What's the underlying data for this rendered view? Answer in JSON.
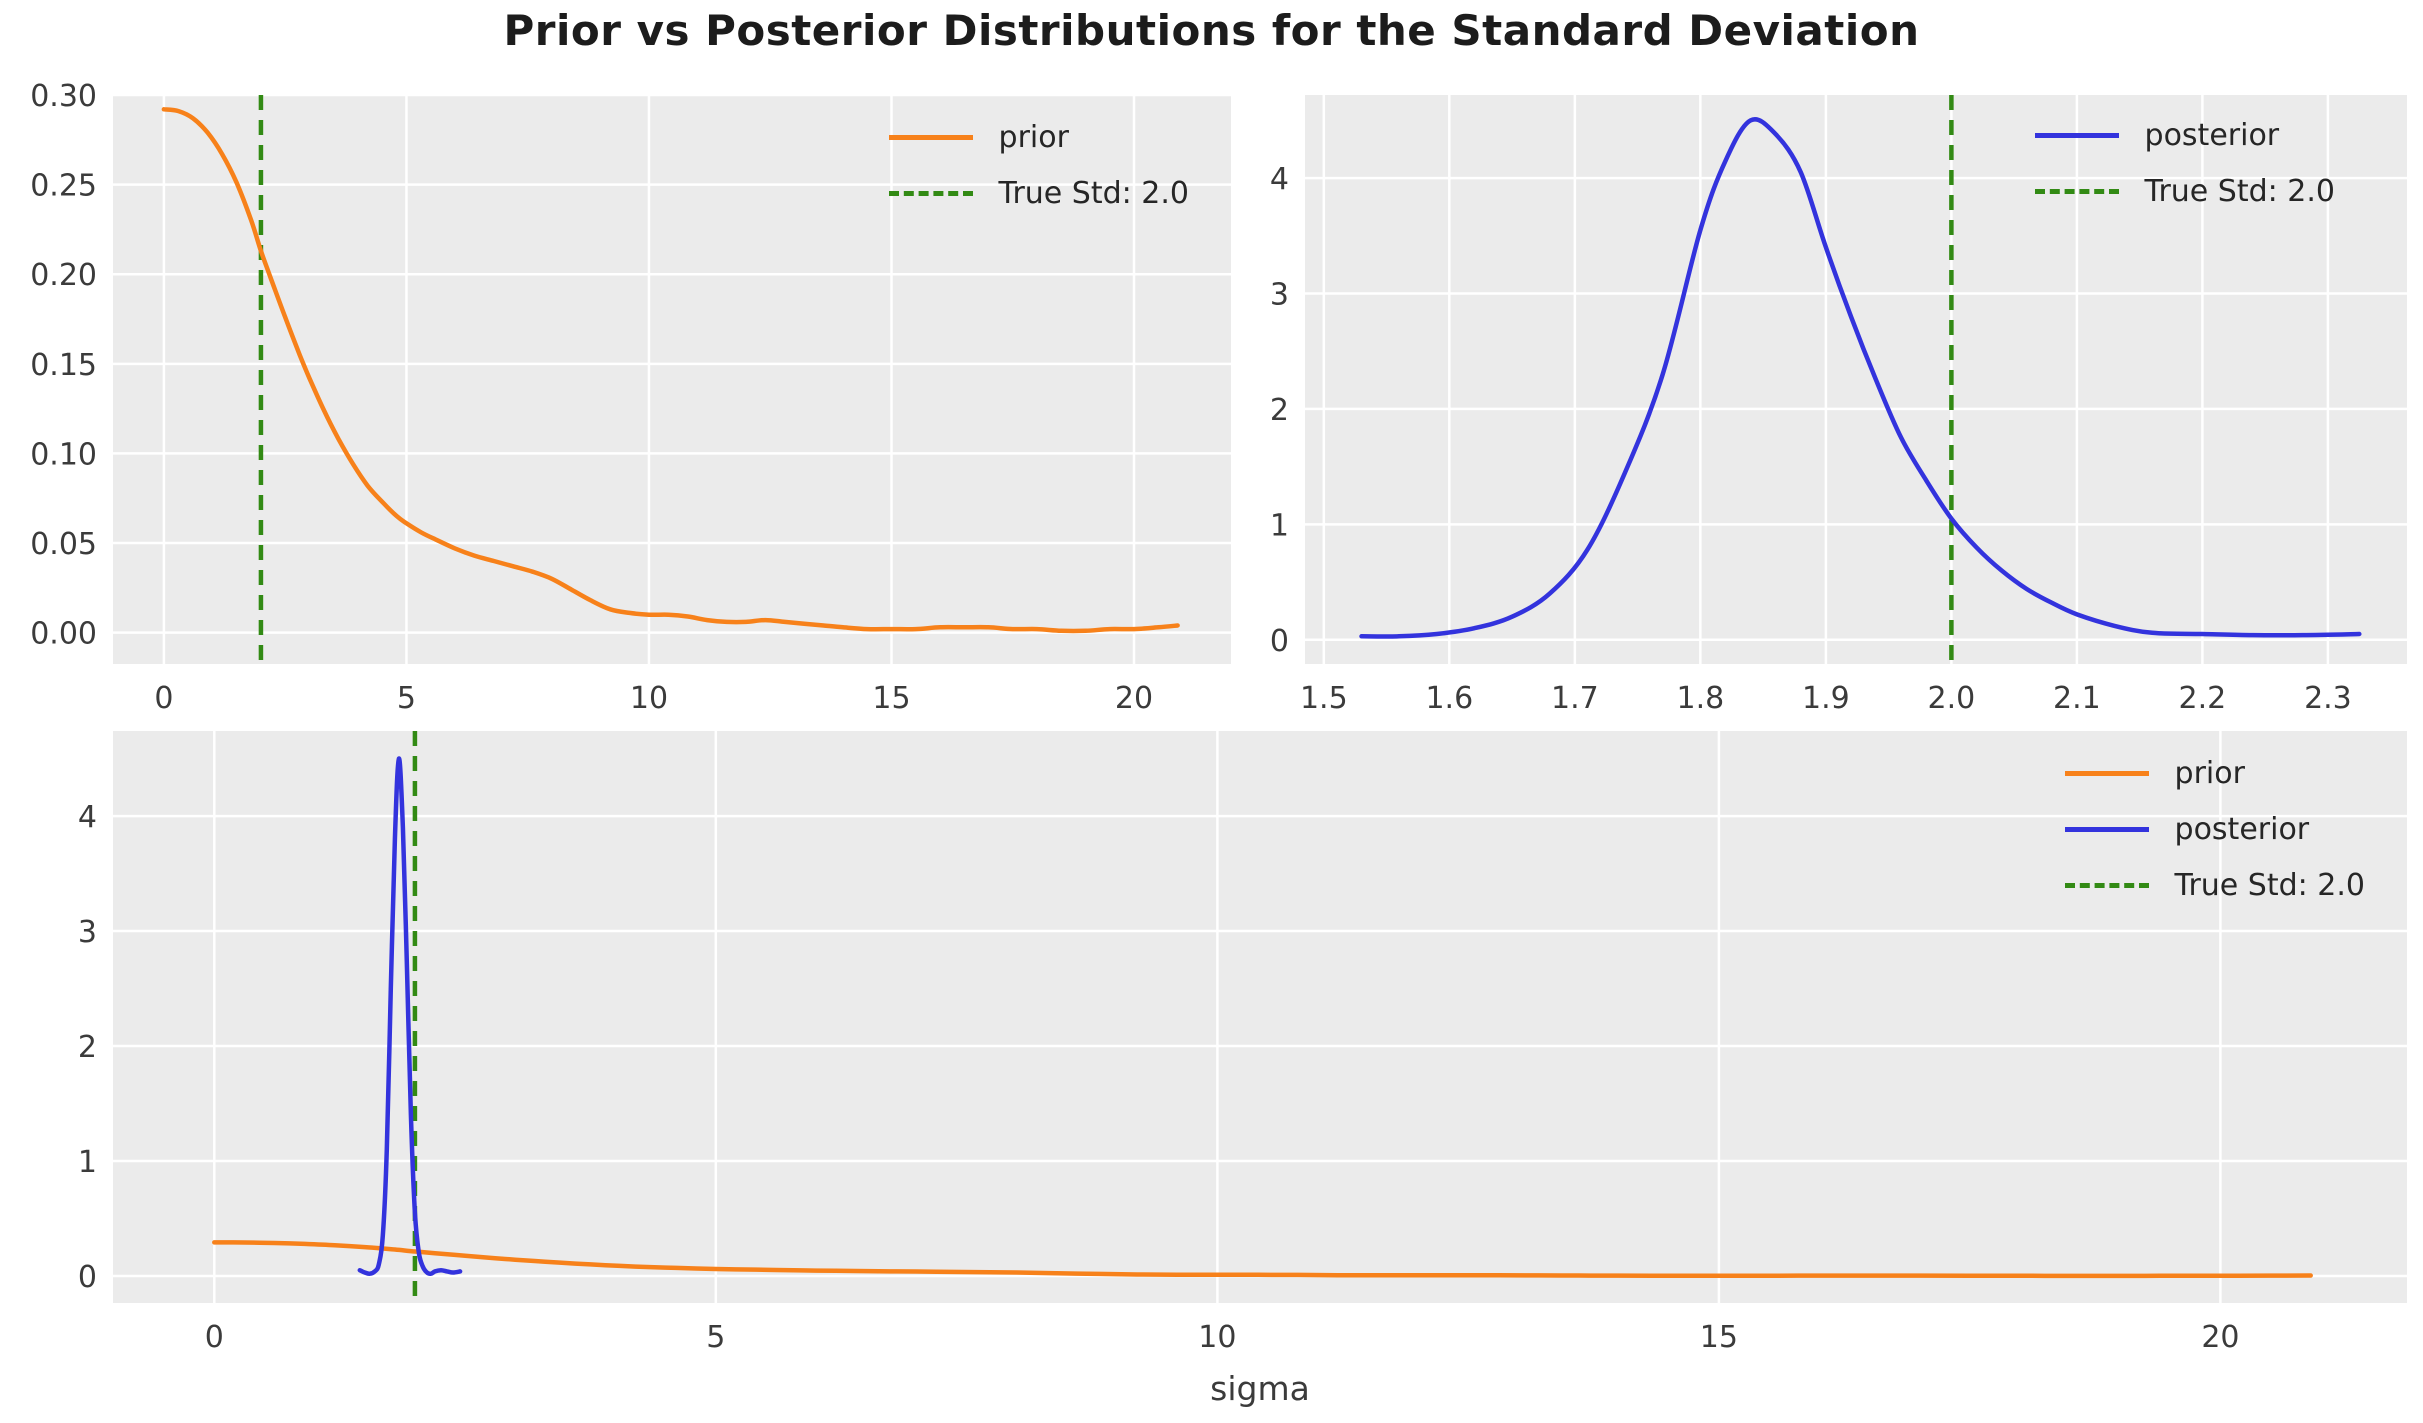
{
  "title": "Prior vs Posterior Distributions for the Standard Deviation",
  "colors": {
    "prior": "#f7811a",
    "posterior": "#3333dd",
    "true_std": "#328a14",
    "axes_background": "#ebebeb",
    "grid": "#ffffff",
    "tick_text": "#3b3b3b",
    "title_text": "#1c1c1c"
  },
  "chart_data": [
    {
      "type": "line",
      "name": "prior-distribution",
      "xlim": [
        -1.05,
        22.0
      ],
      "ylim": [
        -0.0175,
        0.3
      ],
      "grid": true,
      "legend_position": "upper right",
      "xlabel": "",
      "xticks": [
        [
          0,
          "0"
        ],
        [
          5,
          "5"
        ],
        [
          10,
          "10"
        ],
        [
          15,
          "15"
        ],
        [
          20,
          "20"
        ]
      ],
      "yticks": [
        [
          0,
          "0.00"
        ],
        [
          0.05,
          "0.05"
        ],
        [
          0.1,
          "0.10"
        ],
        [
          0.15,
          "0.15"
        ],
        [
          0.2,
          "0.20"
        ],
        [
          0.25,
          "0.25"
        ],
        [
          0.3,
          "0.30"
        ]
      ],
      "vline": {
        "x": 2.0,
        "label": "True Std: 2.0",
        "color": "true_std"
      },
      "series": [
        {
          "name": "prior",
          "color": "prior",
          "points": [
            [
              0,
              0.292
            ],
            [
              0.3,
              0.291
            ],
            [
              0.6,
              0.287
            ],
            [
              0.9,
              0.279
            ],
            [
              1.2,
              0.267
            ],
            [
              1.5,
              0.251
            ],
            [
              1.8,
              0.23
            ],
            [
              2.0,
              0.213
            ],
            [
              2.2,
              0.198
            ],
            [
              2.5,
              0.176
            ],
            [
              2.8,
              0.155
            ],
            [
              3.0,
              0.142
            ],
            [
              3.3,
              0.124
            ],
            [
              3.6,
              0.108
            ],
            [
              3.9,
              0.094
            ],
            [
              4.2,
              0.082
            ],
            [
              4.5,
              0.073
            ],
            [
              4.8,
              0.065
            ],
            [
              5.0,
              0.061
            ],
            [
              5.3,
              0.056
            ],
            [
              5.6,
              0.052
            ],
            [
              6.0,
              0.047
            ],
            [
              6.4,
              0.043
            ],
            [
              6.8,
              0.04
            ],
            [
              7.2,
              0.037
            ],
            [
              7.6,
              0.034
            ],
            [
              8.0,
              0.03
            ],
            [
              8.4,
              0.024
            ],
            [
              8.8,
              0.018
            ],
            [
              9.2,
              0.013
            ],
            [
              9.6,
              0.011
            ],
            [
              10.0,
              0.01
            ],
            [
              10.4,
              0.01
            ],
            [
              10.8,
              0.009
            ],
            [
              11.2,
              0.007
            ],
            [
              11.6,
              0.006
            ],
            [
              12.0,
              0.006
            ],
            [
              12.4,
              0.007
            ],
            [
              12.8,
              0.006
            ],
            [
              13.2,
              0.005
            ],
            [
              13.6,
              0.004
            ],
            [
              14.0,
              0.003
            ],
            [
              14.5,
              0.002
            ],
            [
              15.0,
              0.002
            ],
            [
              15.5,
              0.002
            ],
            [
              16.0,
              0.003
            ],
            [
              16.5,
              0.003
            ],
            [
              17.0,
              0.003
            ],
            [
              17.5,
              0.002
            ],
            [
              18.0,
              0.002
            ],
            [
              18.5,
              0.001
            ],
            [
              19.0,
              0.001
            ],
            [
              19.5,
              0.002
            ],
            [
              20.0,
              0.002
            ],
            [
              20.5,
              0.003
            ],
            [
              20.9,
              0.004
            ]
          ]
        }
      ],
      "legend": [
        {
          "label": "prior",
          "color": "prior",
          "line": "solid"
        },
        {
          "label": "True Std: 2.0",
          "color": "true_std",
          "line": "dashed"
        }
      ]
    },
    {
      "type": "line",
      "name": "posterior-distribution",
      "xlim": [
        1.485,
        2.363
      ],
      "ylim": [
        -0.21,
        4.72
      ],
      "grid": true,
      "legend_position": "upper right",
      "xlabel": "",
      "xticks": [
        [
          1.5,
          "1.5"
        ],
        [
          1.6,
          "1.6"
        ],
        [
          1.7,
          "1.7"
        ],
        [
          1.8,
          "1.8"
        ],
        [
          1.9,
          "1.9"
        ],
        [
          2.0,
          "2.0"
        ],
        [
          2.1,
          "2.1"
        ],
        [
          2.2,
          "2.2"
        ],
        [
          2.3,
          "2.3"
        ]
      ],
      "yticks": [
        [
          0,
          "0"
        ],
        [
          1,
          "1"
        ],
        [
          2,
          "2"
        ],
        [
          3,
          "3"
        ],
        [
          4,
          "4"
        ]
      ],
      "vline": {
        "x": 2.0,
        "label": "True Std: 2.0",
        "color": "true_std"
      },
      "series": [
        {
          "name": "posterior",
          "color": "posterior",
          "points": [
            [
              1.53,
              0.03
            ],
            [
              1.56,
              0.03
            ],
            [
              1.59,
              0.05
            ],
            [
              1.62,
              0.1
            ],
            [
              1.65,
              0.2
            ],
            [
              1.68,
              0.4
            ],
            [
              1.71,
              0.78
            ],
            [
              1.74,
              1.45
            ],
            [
              1.77,
              2.3
            ],
            [
              1.8,
              3.55
            ],
            [
              1.82,
              4.15
            ],
            [
              1.84,
              4.5
            ],
            [
              1.86,
              4.38
            ],
            [
              1.88,
              4.05
            ],
            [
              1.9,
              3.4
            ],
            [
              1.92,
              2.8
            ],
            [
              1.94,
              2.25
            ],
            [
              1.96,
              1.75
            ],
            [
              1.98,
              1.38
            ],
            [
              2.0,
              1.05
            ],
            [
              2.02,
              0.8
            ],
            [
              2.04,
              0.6
            ],
            [
              2.06,
              0.44
            ],
            [
              2.08,
              0.32
            ],
            [
              2.1,
              0.22
            ],
            [
              2.13,
              0.12
            ],
            [
              2.16,
              0.06
            ],
            [
              2.2,
              0.05
            ],
            [
              2.24,
              0.04
            ],
            [
              2.28,
              0.04
            ],
            [
              2.325,
              0.05
            ]
          ]
        }
      ],
      "legend": [
        {
          "label": "posterior",
          "color": "posterior",
          "line": "solid"
        },
        {
          "label": "True Std: 2.0",
          "color": "true_std",
          "line": "dashed"
        }
      ]
    },
    {
      "type": "line",
      "name": "prior-vs-posterior",
      "xlim": [
        -1.01,
        21.86
      ],
      "ylim": [
        -0.235,
        4.74
      ],
      "grid": true,
      "legend_position": "upper right",
      "xlabel": "sigma",
      "xticks": [
        [
          0,
          "0"
        ],
        [
          5,
          "5"
        ],
        [
          10,
          "10"
        ],
        [
          15,
          "15"
        ],
        [
          20,
          "20"
        ]
      ],
      "yticks": [
        [
          0,
          "0"
        ],
        [
          1,
          "1"
        ],
        [
          2,
          "2"
        ],
        [
          3,
          "3"
        ],
        [
          4,
          "4"
        ]
      ],
      "vline": {
        "x": 2.0,
        "label": "True Std: 2.0",
        "color": "true_std"
      },
      "series": [
        {
          "name": "prior",
          "color": "prior",
          "points": [
            [
              0,
              0.292
            ],
            [
              0.3,
              0.291
            ],
            [
              0.6,
              0.287
            ],
            [
              0.9,
              0.279
            ],
            [
              1.2,
              0.267
            ],
            [
              1.5,
              0.251
            ],
            [
              1.8,
              0.23
            ],
            [
              2.0,
              0.213
            ],
            [
              2.2,
              0.198
            ],
            [
              2.5,
              0.176
            ],
            [
              2.8,
              0.155
            ],
            [
              3.0,
              0.142
            ],
            [
              3.3,
              0.124
            ],
            [
              3.6,
              0.108
            ],
            [
              3.9,
              0.094
            ],
            [
              4.2,
              0.082
            ],
            [
              4.5,
              0.073
            ],
            [
              4.8,
              0.065
            ],
            [
              5.0,
              0.061
            ],
            [
              5.3,
              0.056
            ],
            [
              5.6,
              0.052
            ],
            [
              6.0,
              0.047
            ],
            [
              6.4,
              0.043
            ],
            [
              6.8,
              0.04
            ],
            [
              7.2,
              0.037
            ],
            [
              7.6,
              0.034
            ],
            [
              8.0,
              0.03
            ],
            [
              8.4,
              0.024
            ],
            [
              8.8,
              0.018
            ],
            [
              9.2,
              0.013
            ],
            [
              9.6,
              0.011
            ],
            [
              10.0,
              0.01
            ],
            [
              10.4,
              0.01
            ],
            [
              10.8,
              0.009
            ],
            [
              11.2,
              0.007
            ],
            [
              11.6,
              0.006
            ],
            [
              12.0,
              0.006
            ],
            [
              12.4,
              0.007
            ],
            [
              12.8,
              0.006
            ],
            [
              13.2,
              0.005
            ],
            [
              13.6,
              0.004
            ],
            [
              14.0,
              0.003
            ],
            [
              14.5,
              0.002
            ],
            [
              15.0,
              0.002
            ],
            [
              15.5,
              0.002
            ],
            [
              16.0,
              0.003
            ],
            [
              16.5,
              0.003
            ],
            [
              17.0,
              0.003
            ],
            [
              17.5,
              0.002
            ],
            [
              18.0,
              0.002
            ],
            [
              18.5,
              0.001
            ],
            [
              19.0,
              0.001
            ],
            [
              19.5,
              0.002
            ],
            [
              20.0,
              0.002
            ],
            [
              20.5,
              0.003
            ],
            [
              20.9,
              0.004
            ]
          ]
        },
        {
          "name": "posterior",
          "color": "posterior",
          "points": [
            [
              1.45,
              0.05
            ],
            [
              1.5,
              0.03
            ],
            [
              1.55,
              0.02
            ],
            [
              1.6,
              0.04
            ],
            [
              1.64,
              0.1
            ],
            [
              1.68,
              0.35
            ],
            [
              1.72,
              1.1
            ],
            [
              1.76,
              2.5
            ],
            [
              1.8,
              3.8
            ],
            [
              1.84,
              4.5
            ],
            [
              1.88,
              3.9
            ],
            [
              1.92,
              2.7
            ],
            [
              1.96,
              1.4
            ],
            [
              2.0,
              0.55
            ],
            [
              2.04,
              0.2
            ],
            [
              2.08,
              0.08
            ],
            [
              2.12,
              0.03
            ],
            [
              2.16,
              0.02
            ],
            [
              2.2,
              0.04
            ],
            [
              2.26,
              0.05
            ],
            [
              2.32,
              0.04
            ],
            [
              2.38,
              0.03
            ],
            [
              2.45,
              0.04
            ]
          ]
        }
      ],
      "legend": [
        {
          "label": "prior",
          "color": "prior",
          "line": "solid"
        },
        {
          "label": "posterior",
          "color": "posterior",
          "line": "solid"
        },
        {
          "label": "True Std: 2.0",
          "color": "true_std",
          "line": "dashed"
        }
      ]
    }
  ]
}
